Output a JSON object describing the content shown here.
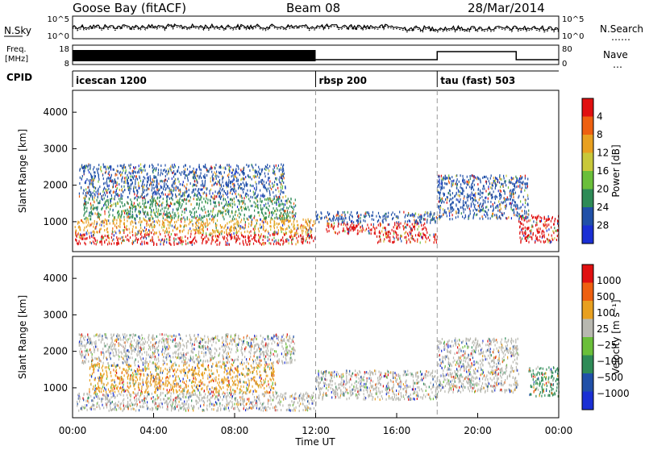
{
  "header": {
    "title": "Goose Bay (fitACF)",
    "beam": "Beam 08",
    "date": "28/Mar/2014"
  },
  "noise_panel": {
    "left_label": "N.Sky",
    "left_ticks": [
      "10^5",
      "10^0"
    ],
    "right_ticks": [
      "10^5",
      "10^0"
    ],
    "right_label": "N.Search",
    "right_line": "……"
  },
  "freq_panel": {
    "label_line1": "Freq.",
    "label_line2": "[MHz]",
    "left_ticks": [
      "18",
      "8"
    ],
    "right_ticks": [
      "80",
      "0"
    ],
    "right_label": "Nave",
    "right_line": "…",
    "cpid_label": "CPID"
  },
  "cpid_segments": [
    {
      "label": "icescan 1200",
      "start_h": 0
    },
    {
      "label": "rbsp 200",
      "start_h": 12
    },
    {
      "label": "tau (fast) 503",
      "start_h": 18
    }
  ],
  "x_axis": {
    "label": "Time UT",
    "ticks": [
      "00:00",
      "04:00",
      "08:00",
      "12:00",
      "16:00",
      "20:00",
      "00:00"
    ]
  },
  "chart_data": [
    {
      "type": "heatmap",
      "name": "power",
      "ylabel": "Slant Range [km]",
      "xlim_hours": [
        0,
        24
      ],
      "ylim": [
        180,
        4600
      ],
      "yticks": [
        1000,
        2000,
        3000,
        4000
      ],
      "colorbar": {
        "label": "Power [dB]",
        "ticks": [
          "4",
          "8",
          "12",
          "16",
          "20",
          "24",
          "28"
        ],
        "colors": [
          "#1a2fd4",
          "#2050a8",
          "#2e8b57",
          "#6abf3a",
          "#c8c83a",
          "#e8a020",
          "#ee6010",
          "#e01010"
        ]
      },
      "clusters": [
        {
          "t0": 0.1,
          "t1": 12.0,
          "r0": 400,
          "r1": 700,
          "level": 3,
          "color": "#e01010"
        },
        {
          "t0": 0.1,
          "t1": 12.0,
          "r0": 700,
          "r1": 1100,
          "level": 2,
          "color": "#e8a020"
        },
        {
          "t0": 0.5,
          "t1": 11.0,
          "r0": 1100,
          "r1": 1700,
          "level": 2,
          "color": "#2e8b57"
        },
        {
          "t0": 0.3,
          "t1": 10.5,
          "r0": 1700,
          "r1": 2600,
          "level": 1,
          "color": "#2050a8"
        },
        {
          "t0": 12.0,
          "t1": 18.0,
          "r0": 1000,
          "r1": 1300,
          "level": 1,
          "color": "#2050a8"
        },
        {
          "t0": 12.5,
          "t1": 17.5,
          "r0": 700,
          "r1": 1000,
          "level": 3,
          "color": "#e01010"
        },
        {
          "t0": 15.0,
          "t1": 18.0,
          "r0": 450,
          "r1": 700,
          "level": 3,
          "color": "#e01010"
        },
        {
          "t0": 18.0,
          "t1": 22.5,
          "r0": 1100,
          "r1": 2300,
          "level": 1,
          "color": "#2050a8"
        },
        {
          "t0": 22.0,
          "t1": 24.0,
          "r0": 450,
          "r1": 1200,
          "level": 3,
          "color": "#e01010"
        }
      ]
    },
    {
      "type": "heatmap",
      "name": "velocity",
      "ylabel": "Slant Range [km]",
      "xlim_hours": [
        0,
        24
      ],
      "ylim": [
        180,
        4600
      ],
      "yticks": [
        1000,
        2000,
        3000,
        4000
      ],
      "colorbar": {
        "label": "Velocity [m s⁻¹]",
        "ticks": [
          "1000",
          "500",
          "100",
          "25",
          "−25",
          "−100",
          "−500",
          "−1000"
        ],
        "colors": [
          "#1a2fd4",
          "#2050a8",
          "#2e8b57",
          "#6abf3a",
          "#b8b8b0",
          "#e8a020",
          "#ee6010",
          "#e01010"
        ]
      },
      "clusters": [
        {
          "t0": 0.2,
          "t1": 12.0,
          "r0": 400,
          "r1": 900,
          "level": 0,
          "color": "#b8b8b0"
        },
        {
          "t0": 0.8,
          "t1": 10.0,
          "r0": 900,
          "r1": 1700,
          "level": 2,
          "color": "#e8a020"
        },
        {
          "t0": 0.3,
          "t1": 11.0,
          "r0": 1700,
          "r1": 2500,
          "level": 0,
          "color": "#b8b8b0"
        },
        {
          "t0": 12.0,
          "t1": 18.0,
          "r0": 700,
          "r1": 1500,
          "level": 0,
          "color": "#b8b8b0"
        },
        {
          "t0": 18.0,
          "t1": 22.0,
          "r0": 900,
          "r1": 2400,
          "level": 0,
          "color": "#b8b8b0"
        },
        {
          "t0": 22.5,
          "t1": 24.0,
          "r0": 800,
          "r1": 1600,
          "level": 1,
          "color": "#2e8b57"
        }
      ]
    }
  ]
}
